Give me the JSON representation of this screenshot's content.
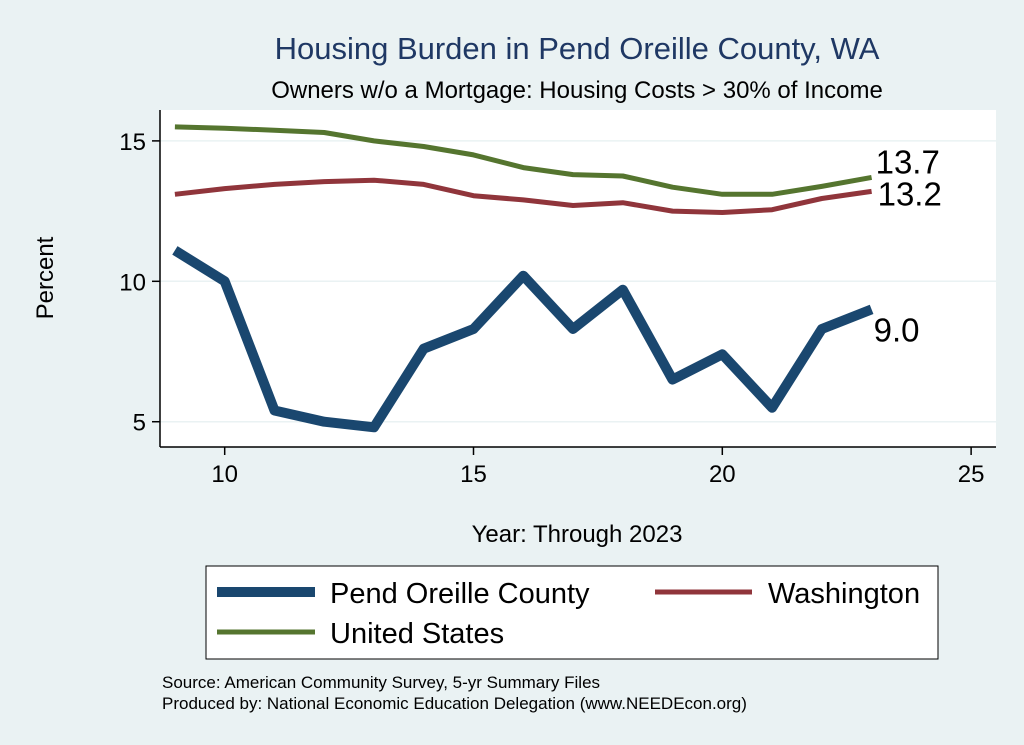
{
  "chart_data": {
    "type": "line",
    "title": "Housing Burden in Pend Oreille County, WA",
    "subtitle": "Owners w/o a Mortgage: Housing Costs > 30% of Income",
    "xlabel": "Year: Through 2023",
    "ylabel": "Percent",
    "xlim": [
      8.7,
      25.5
    ],
    "ylim": [
      4.1,
      16.1
    ],
    "xticks": [
      10,
      15,
      20,
      25
    ],
    "yticks": [
      5,
      10,
      15
    ],
    "grid": "horizontal",
    "legend_position": "bottom",
    "x": [
      9,
      10,
      11,
      12,
      13,
      14,
      15,
      16,
      17,
      18,
      19,
      20,
      21,
      22,
      23
    ],
    "series": [
      {
        "name": "Pend Oreille County",
        "color": "#1a476f",
        "end_label": "9.0",
        "values": [
          11.1,
          10.0,
          5.4,
          5.0,
          4.8,
          7.6,
          8.3,
          10.2,
          8.3,
          9.7,
          6.5,
          7.4,
          5.5,
          8.3,
          9.0
        ]
      },
      {
        "name": "Washington",
        "color": "#90353b",
        "end_label": "13.2",
        "values": [
          13.1,
          13.3,
          13.45,
          13.55,
          13.6,
          13.45,
          13.05,
          12.9,
          12.7,
          12.8,
          12.5,
          12.45,
          12.55,
          12.95,
          13.2
        ]
      },
      {
        "name": "United States",
        "color": "#55752f",
        "end_label": "13.7",
        "values": [
          15.5,
          15.45,
          15.38,
          15.3,
          15.0,
          14.8,
          14.5,
          14.05,
          13.8,
          13.75,
          13.35,
          13.1,
          13.1,
          13.38,
          13.7
        ]
      }
    ]
  },
  "notes": {
    "source": "Source: American Community Survey, 5-yr Summary Files",
    "produced": "Produced by: National Economic Education Delegation (www.NEEDEcon.org)"
  }
}
